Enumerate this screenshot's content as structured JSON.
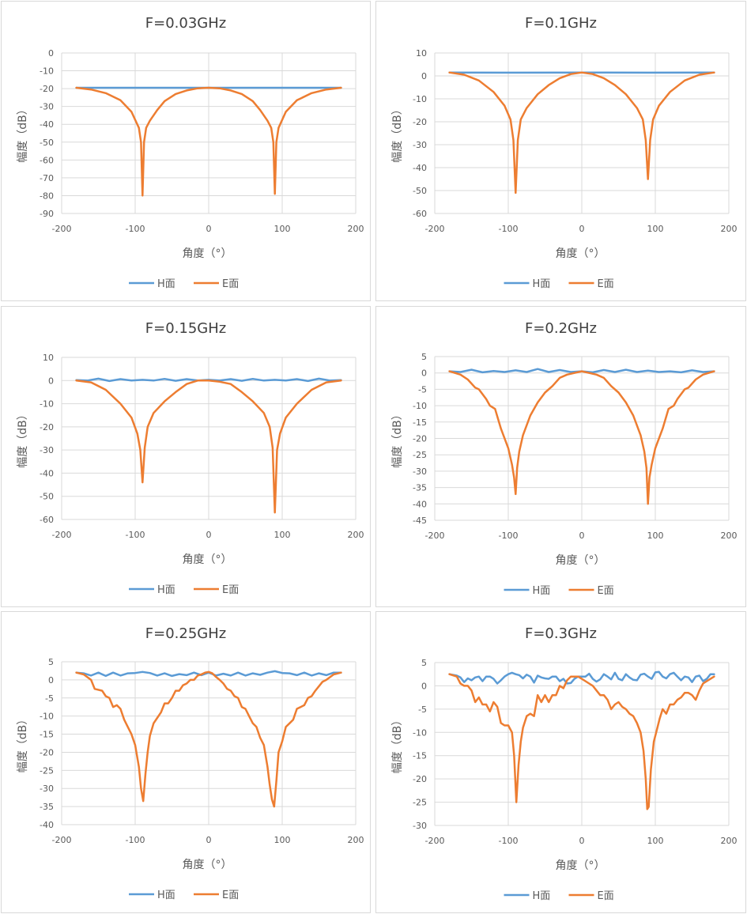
{
  "colors": {
    "h": "#5b9bd5",
    "e": "#ed7d31",
    "grid": "#d9d9d9",
    "text": "#595959"
  },
  "chart_data": [
    {
      "type": "line",
      "title": "F=0.03GHz",
      "xlabel": "角度（°）",
      "ylabel": "幅度（dB）",
      "xlim": [
        -200,
        200
      ],
      "xticks": [
        -200,
        -100,
        0,
        100,
        200
      ],
      "ylim": [
        -90,
        0
      ],
      "yticks": [
        0,
        -10,
        -20,
        -30,
        -40,
        -50,
        -60,
        -70,
        -80,
        -90
      ],
      "grid": "horizontal",
      "legend": "bottom",
      "series": [
        {
          "name": "H面",
          "x": [
            -180,
            0,
            180
          ],
          "y": [
            -19.5,
            -19.5,
            -19.5
          ]
        },
        {
          "name": "E面",
          "x": [
            -180,
            -160,
            -140,
            -120,
            -105,
            -95,
            -92,
            -90,
            -88,
            -85,
            -80,
            -70,
            -60,
            -45,
            -30,
            -15,
            0,
            15,
            30,
            45,
            60,
            70,
            80,
            85,
            88,
            90,
            92,
            95,
            105,
            120,
            140,
            160,
            180
          ],
          "y": [
            -19.5,
            -20.5,
            -22.5,
            -26.5,
            -33,
            -42,
            -50,
            -80,
            -50,
            -42,
            -38,
            -32,
            -27,
            -23,
            -21,
            -19.8,
            -19.5,
            -19.8,
            -21,
            -23,
            -27,
            -32,
            -38,
            -42,
            -50,
            -79,
            -50,
            -42,
            -33,
            -26.5,
            -22.5,
            -20.5,
            -19.5
          ]
        }
      ]
    },
    {
      "type": "line",
      "title": "F=0.1GHz",
      "xlabel": "角度（°）",
      "ylabel": "幅度（dB）",
      "xlim": [
        -200,
        200
      ],
      "xticks": [
        -200,
        -100,
        0,
        100,
        200
      ],
      "ylim": [
        -60,
        10
      ],
      "yticks": [
        10,
        0,
        -10,
        -20,
        -30,
        -40,
        -50,
        -60
      ],
      "grid": "horizontal",
      "legend": "bottom",
      "series": [
        {
          "name": "H面",
          "x": [
            -180,
            -90,
            0,
            90,
            180
          ],
          "y": [
            1.5,
            1.4,
            1.5,
            1.4,
            1.5
          ]
        },
        {
          "name": "E面",
          "x": [
            -180,
            -160,
            -140,
            -120,
            -105,
            -97,
            -93,
            -90,
            -87,
            -83,
            -75,
            -60,
            -45,
            -30,
            -15,
            0,
            15,
            30,
            45,
            60,
            75,
            83,
            87,
            90,
            93,
            97,
            105,
            120,
            140,
            160,
            180
          ],
          "y": [
            1.5,
            0.5,
            -2,
            -7,
            -13,
            -19,
            -28,
            -51,
            -28,
            -19,
            -14,
            -8,
            -4,
            -1,
            0.8,
            1.5,
            0.8,
            -1,
            -4,
            -8,
            -14,
            -19,
            -28,
            -45,
            -28,
            -19,
            -13,
            -7,
            -2,
            0.5,
            1.5
          ]
        }
      ]
    },
    {
      "type": "line",
      "title": "F=0.15GHz",
      "xlabel": "角度（°）",
      "ylabel": "幅度（dB）",
      "xlim": [
        -200,
        200
      ],
      "xticks": [
        -200,
        -100,
        0,
        100,
        200
      ],
      "ylim": [
        -60,
        10
      ],
      "yticks": [
        10,
        0,
        -10,
        -20,
        -30,
        -40,
        -50,
        -60
      ],
      "grid": "horizontal",
      "legend": "bottom",
      "series": [
        {
          "name": "H面",
          "x": [
            -180,
            -165,
            -150,
            -135,
            -120,
            -105,
            -90,
            -75,
            -60,
            -45,
            -30,
            -15,
            0,
            15,
            30,
            45,
            60,
            75,
            90,
            105,
            120,
            135,
            150,
            165,
            180
          ],
          "y": [
            0.2,
            0,
            0.8,
            -0.2,
            0.6,
            0,
            0.3,
            0,
            0.7,
            -0.1,
            0.6,
            0,
            0.3,
            0,
            0.6,
            -0.1,
            0.7,
            0,
            0.3,
            0,
            0.6,
            -0.2,
            0.8,
            0,
            0.2
          ]
        },
        {
          "name": "E面",
          "x": [
            -180,
            -160,
            -140,
            -120,
            -105,
            -97,
            -93,
            -90,
            -87,
            -83,
            -75,
            -60,
            -45,
            -30,
            -15,
            0,
            15,
            30,
            45,
            60,
            75,
            83,
            87,
            90,
            93,
            97,
            105,
            120,
            140,
            160,
            180
          ],
          "y": [
            0,
            -0.8,
            -4,
            -10,
            -16,
            -23,
            -30,
            -44,
            -29,
            -20,
            -14,
            -9,
            -5,
            -1.5,
            0,
            0,
            -0.5,
            -1.5,
            -5,
            -9,
            -14,
            -20,
            -29,
            -57,
            -30,
            -23,
            -16,
            -10,
            -4,
            -0.8,
            0
          ]
        }
      ]
    },
    {
      "type": "line",
      "title": "F=0.2GHz",
      "xlabel": "角度（°）",
      "ylabel": "幅度（dB）",
      "xlim": [
        -200,
        200
      ],
      "xticks": [
        -200,
        -100,
        0,
        100,
        200
      ],
      "ylim": [
        -45,
        5
      ],
      "yticks": [
        5,
        0,
        -5,
        -10,
        -15,
        -20,
        -25,
        -30,
        -35,
        -40,
        -45
      ],
      "grid": "horizontal",
      "legend": "bottom",
      "series": [
        {
          "name": "H面",
          "x": [
            -180,
            -165,
            -150,
            -135,
            -120,
            -105,
            -90,
            -75,
            -60,
            -45,
            -30,
            -15,
            0,
            15,
            30,
            45,
            60,
            75,
            90,
            105,
            120,
            135,
            150,
            165,
            180
          ],
          "y": [
            0.5,
            0.3,
            1,
            0.2,
            0.6,
            0.3,
            0.8,
            0.3,
            1.2,
            0.3,
            0.9,
            0.3,
            0.5,
            0.2,
            0.9,
            0.3,
            1,
            0.3,
            0.7,
            0.3,
            0.5,
            0.2,
            0.8,
            0.3,
            0.5
          ]
        },
        {
          "name": "E面",
          "x": [
            -180,
            -165,
            -155,
            -145,
            -140,
            -130,
            -125,
            -118,
            -110,
            -100,
            -95,
            -92,
            -90,
            -88,
            -85,
            -80,
            -70,
            -60,
            -50,
            -40,
            -30,
            -20,
            -10,
            0,
            10,
            20,
            30,
            40,
            50,
            60,
            70,
            80,
            85,
            88,
            90,
            92,
            95,
            100,
            110,
            118,
            125,
            130,
            140,
            145,
            155,
            165,
            180
          ],
          "y": [
            0.5,
            -0.5,
            -2,
            -4.5,
            -5,
            -8,
            -10,
            -11,
            -17,
            -23,
            -28,
            -32,
            -37,
            -29,
            -24,
            -19,
            -13,
            -9,
            -6,
            -4,
            -1.5,
            -0.5,
            0,
            0.5,
            0,
            -0.5,
            -1.5,
            -4,
            -6,
            -9,
            -13,
            -19,
            -24,
            -29,
            -40,
            -32,
            -28,
            -23,
            -17,
            -11,
            -10,
            -8,
            -5,
            -4.5,
            -2,
            -0.5,
            0.5
          ]
        }
      ]
    },
    {
      "type": "line",
      "title": "F=0.25GHz",
      "xlabel": "角度（°）",
      "ylabel": "幅度（dB）",
      "xlim": [
        -200,
        200
      ],
      "xticks": [
        -200,
        -100,
        0,
        100,
        200
      ],
      "ylim": [
        -40,
        5
      ],
      "yticks": [
        5,
        0,
        -5,
        -10,
        -15,
        -20,
        -25,
        -30,
        -35,
        -40
      ],
      "grid": "horizontal",
      "legend": "bottom",
      "series": [
        {
          "name": "H面",
          "x": [
            -180,
            -170,
            -160,
            -150,
            -140,
            -130,
            -120,
            -110,
            -100,
            -90,
            -80,
            -70,
            -60,
            -50,
            -40,
            -30,
            -20,
            -10,
            0,
            10,
            20,
            30,
            40,
            50,
            60,
            70,
            80,
            90,
            100,
            110,
            120,
            130,
            140,
            150,
            160,
            170,
            180
          ],
          "y": [
            2,
            1.8,
            1.2,
            2,
            1.1,
            2,
            1.2,
            1.8,
            1.9,
            2.2,
            1.9,
            1.2,
            1.8,
            1.1,
            1.6,
            1.3,
            2,
            1.3,
            2,
            1.2,
            1.7,
            1.2,
            2,
            1.2,
            1.8,
            1.4,
            2,
            2.4,
            1.9,
            1.8,
            1.3,
            2,
            1.2,
            1.8,
            1.3,
            2,
            2
          ]
        },
        {
          "name": "E面",
          "x": [
            -180,
            -170,
            -160,
            -155,
            -145,
            -140,
            -135,
            -130,
            -125,
            -120,
            -115,
            -110,
            -105,
            -100,
            -95,
            -92,
            -89,
            -86,
            -83,
            -80,
            -75,
            -70,
            -65,
            -60,
            -55,
            -50,
            -45,
            -40,
            -35,
            -30,
            -25,
            -20,
            -15,
            -10,
            -5,
            0,
            5,
            10,
            15,
            20,
            25,
            30,
            35,
            40,
            45,
            50,
            55,
            60,
            65,
            70,
            75,
            80,
            83,
            86,
            89,
            92,
            95,
            100,
            105,
            110,
            115,
            120,
            125,
            130,
            135,
            140,
            145,
            155,
            160,
            170,
            180
          ],
          "y": [
            2,
            1.5,
            0,
            -2.5,
            -3,
            -4.5,
            -5,
            -7.5,
            -7,
            -8,
            -11,
            -13,
            -15,
            -18,
            -24,
            -30,
            -33.5,
            -26,
            -20,
            -15.5,
            -12,
            -10.5,
            -9,
            -6.5,
            -6.5,
            -5,
            -3,
            -3,
            -1.5,
            -1,
            0,
            0,
            1.2,
            1.5,
            2,
            2.2,
            1.8,
            0.8,
            0,
            -1,
            -2.5,
            -3,
            -4.5,
            -5,
            -7.5,
            -8,
            -10,
            -12,
            -13,
            -16,
            -18,
            -24,
            -29,
            -33,
            -35,
            -28,
            -20,
            -17,
            -13,
            -12,
            -11,
            -8,
            -7.5,
            -7,
            -5,
            -4.5,
            -3,
            -0.5,
            0,
            1.5,
            2
          ]
        }
      ]
    },
    {
      "type": "line",
      "title": "F=0.3GHz",
      "xlabel": "角度（°）",
      "ylabel": "幅度（dB）",
      "xlim": [
        -200,
        200
      ],
      "xticks": [
        -200,
        -100,
        0,
        100,
        200
      ],
      "ylim": [
        -30,
        5
      ],
      "yticks": [
        5,
        0,
        -5,
        -10,
        -15,
        -20,
        -25,
        -30
      ],
      "grid": "horizontal",
      "legend": "bottom",
      "series": [
        {
          "name": "H面",
          "x": [
            -180,
            -170,
            -165,
            -160,
            -155,
            -150,
            -145,
            -140,
            -135,
            -130,
            -125,
            -120,
            -115,
            -110,
            -105,
            -100,
            -95,
            -90,
            -85,
            -80,
            -75,
            -70,
            -65,
            -60,
            -55,
            -50,
            -45,
            -40,
            -35,
            -30,
            -25,
            -20,
            -15,
            -10,
            -5,
            0,
            5,
            10,
            15,
            20,
            25,
            30,
            35,
            40,
            45,
            50,
            55,
            60,
            65,
            70,
            75,
            80,
            85,
            90,
            95,
            100,
            105,
            110,
            115,
            120,
            125,
            130,
            135,
            140,
            145,
            150,
            155,
            160,
            165,
            170,
            175,
            180
          ],
          "y": [
            2.5,
            2.2,
            1.8,
            0.8,
            1.6,
            1.2,
            1.8,
            2,
            1,
            2,
            2,
            1.5,
            0.5,
            1.2,
            2,
            2.5,
            2.8,
            2.5,
            2.3,
            1.6,
            2.4,
            2,
            0.7,
            2.2,
            1.8,
            1.6,
            1.5,
            2,
            2,
            1,
            1.5,
            0.5,
            0.6,
            1.5,
            2,
            2,
            2,
            2.6,
            1.5,
            0.9,
            1.4,
            2.5,
            2,
            1.4,
            2.8,
            1.5,
            1.2,
            2.5,
            1.8,
            1.3,
            1.2,
            2.4,
            2.6,
            2,
            1.5,
            2.9,
            3,
            2,
            1.6,
            2.5,
            2.8,
            2,
            1.2,
            2,
            1.8,
            0.8,
            2,
            2.2,
            1,
            1.5,
            2.5,
            2.5
          ]
        },
        {
          "name": "E面",
          "x": [
            -180,
            -170,
            -165,
            -160,
            -155,
            -150,
            -145,
            -140,
            -135,
            -130,
            -125,
            -120,
            -115,
            -110,
            -105,
            -100,
            -95,
            -92,
            -89,
            -86,
            -83,
            -80,
            -75,
            -70,
            -65,
            -60,
            -55,
            -50,
            -45,
            -40,
            -35,
            -30,
            -25,
            -20,
            -15,
            -10,
            -5,
            0,
            5,
            10,
            15,
            20,
            25,
            30,
            35,
            40,
            45,
            50,
            55,
            60,
            65,
            70,
            75,
            80,
            84,
            87,
            89,
            91,
            94,
            98,
            102,
            106,
            110,
            115,
            120,
            125,
            130,
            135,
            140,
            145,
            150,
            155,
            160,
            165,
            170,
            175,
            180
          ],
          "y": [
            2.5,
            2,
            0.5,
            0,
            0,
            -1,
            -3.5,
            -2.5,
            -4,
            -4,
            -5.5,
            -3.5,
            -4.5,
            -8,
            -8.5,
            -8.5,
            -10,
            -15,
            -25,
            -17,
            -12,
            -9,
            -6.5,
            -6,
            -6.5,
            -2,
            -3.5,
            -2,
            -3.5,
            -2,
            -2,
            0,
            -0.5,
            1.2,
            2,
            2,
            2,
            1.5,
            1,
            0.5,
            0,
            -1,
            -2,
            -2,
            -3,
            -5,
            -4,
            -3.5,
            -4.5,
            -5,
            -6,
            -6.5,
            -8,
            -10,
            -14,
            -20,
            -26.5,
            -26,
            -18,
            -12,
            -9.5,
            -7,
            -5,
            -6,
            -4,
            -4,
            -3,
            -2.5,
            -1.5,
            -1.5,
            -2,
            -3,
            -1,
            0.5,
            1,
            1.5,
            2
          ]
        }
      ]
    }
  ]
}
